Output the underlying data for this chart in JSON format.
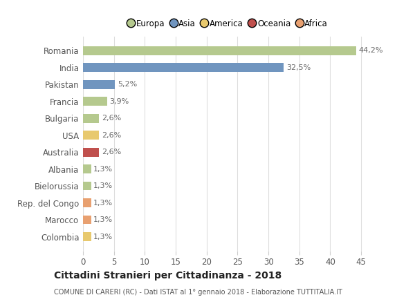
{
  "countries": [
    "Romania",
    "India",
    "Pakistan",
    "Francia",
    "Bulgaria",
    "USA",
    "Australia",
    "Albania",
    "Bielorussia",
    "Rep. del Congo",
    "Marocco",
    "Colombia"
  ],
  "values": [
    44.2,
    32.5,
    5.2,
    3.9,
    2.6,
    2.6,
    2.6,
    1.3,
    1.3,
    1.3,
    1.3,
    1.3
  ],
  "labels": [
    "44,2%",
    "32,5%",
    "5,2%",
    "3,9%",
    "2,6%",
    "2,6%",
    "2,6%",
    "1,3%",
    "1,3%",
    "1,3%",
    "1,3%",
    "1,3%"
  ],
  "colors": [
    "#b5c98e",
    "#7095bf",
    "#7095bf",
    "#b5c98e",
    "#b5c98e",
    "#e8c96e",
    "#c0504d",
    "#b5c98e",
    "#b5c98e",
    "#e8a070",
    "#e8a070",
    "#e8c96e"
  ],
  "legend": [
    {
      "label": "Europa",
      "color": "#b5c98e"
    },
    {
      "label": "Asia",
      "color": "#7095bf"
    },
    {
      "label": "America",
      "color": "#e8c96e"
    },
    {
      "label": "Oceania",
      "color": "#c0504d"
    },
    {
      "label": "Africa",
      "color": "#e8a070"
    }
  ],
  "xlim": [
    0,
    47
  ],
  "xticks": [
    0,
    5,
    10,
    15,
    20,
    25,
    30,
    35,
    40,
    45
  ],
  "title": "Cittadini Stranieri per Cittadinanza - 2018",
  "subtitle": "COMUNE DI CARERI (RC) - Dati ISTAT al 1° gennaio 2018 - Elaborazione TUTTITALIA.IT",
  "bg_color": "#ffffff",
  "grid_color": "#dddddd",
  "bar_height": 0.52
}
